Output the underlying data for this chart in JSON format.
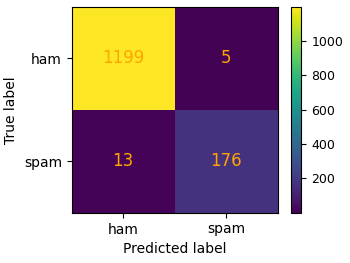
{
  "matrix": [
    [
      1199,
      5
    ],
    [
      13,
      176
    ]
  ],
  "x_labels": [
    "ham",
    "spam"
  ],
  "y_labels": [
    "ham",
    "spam"
  ],
  "xlabel": "Predicted label",
  "ylabel": "True label",
  "colormap": "viridis",
  "text_color": "orange",
  "text_fontsize": 12,
  "colorbar_ticks": [
    200,
    400,
    600,
    800,
    1000
  ],
  "colorbar_tick_fontsize": 9,
  "axis_tick_fontsize": 10,
  "axis_label_fontsize": 10,
  "vmin": 0,
  "vmax": 1199,
  "figwidth": 3.5,
  "figheight": 2.63,
  "dpi": 100
}
